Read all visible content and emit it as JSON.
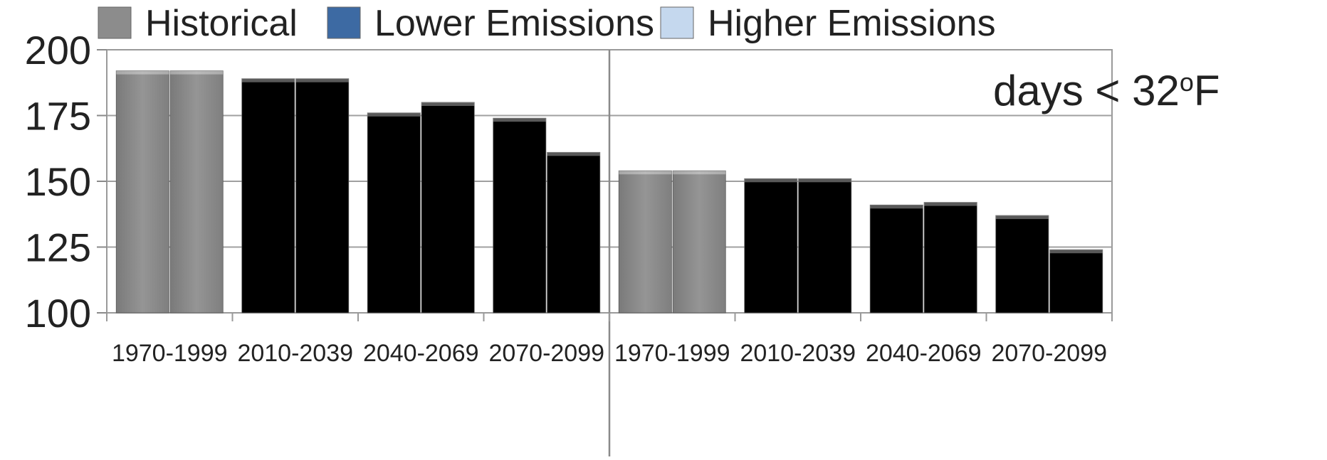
{
  "chart_data": {
    "type": "bar",
    "annotation": "days < 32",
    "annotation_superscript": "o",
    "annotation_unit": "F",
    "legend": [
      {
        "name": "Historical",
        "color": "#8c8c8c"
      },
      {
        "name": "Lower Emissions",
        "color": "#3d6aa3"
      },
      {
        "name": "Higher Emissions",
        "color": "#c5d8ee"
      }
    ],
    "ylim": [
      100,
      200
    ],
    "yticks": [
      100,
      125,
      150,
      175,
      200
    ],
    "legend_position": "top",
    "grid": true,
    "groups": [
      {
        "periods": [
          "1970-1999",
          "2010-2039",
          "2040-2069",
          "2070-2099"
        ],
        "bars": [
          [
            {
              "series": "Historical",
              "value": 192
            },
            {
              "series": "Historical",
              "value": 192
            }
          ],
          [
            {
              "series": "Lower Emissions",
              "value": 189
            },
            {
              "series": "Higher Emissions",
              "value": 189
            }
          ],
          [
            {
              "series": "Lower Emissions",
              "value": 176
            },
            {
              "series": "Higher Emissions",
              "value": 180
            }
          ],
          [
            {
              "series": "Lower Emissions",
              "value": 174
            },
            {
              "series": "Higher Emissions",
              "value": 161
            }
          ]
        ]
      },
      {
        "periods": [
          "1970-1999",
          "2010-2039",
          "2040-2069",
          "2070-2099"
        ],
        "bars": [
          [
            {
              "series": "Historical",
              "value": 154
            },
            {
              "series": "Historical",
              "value": 154
            }
          ],
          [
            {
              "series": "Lower Emissions",
              "value": 151
            },
            {
              "series": "Higher Emissions",
              "value": 151
            }
          ],
          [
            {
              "series": "Lower Emissions",
              "value": 141
            },
            {
              "series": "Higher Emissions",
              "value": 142
            }
          ],
          [
            {
              "series": "Lower Emissions",
              "value": 137
            },
            {
              "series": "Higher Emissions",
              "value": 124
            }
          ]
        ]
      }
    ]
  }
}
